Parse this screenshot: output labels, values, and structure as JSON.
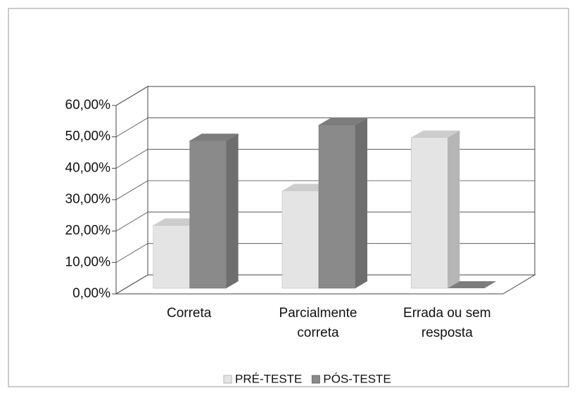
{
  "chart_data": {
    "type": "bar3d",
    "categories": [
      [
        "Correta"
      ],
      [
        "Parcialmente",
        "correta"
      ],
      [
        "Errada ou sem",
        "resposta"
      ]
    ],
    "series": [
      {
        "name": "PRÉ-TESTE",
        "color": "#e4e4e4",
        "values": [
          20,
          31,
          48
        ]
      },
      {
        "name": "PÓS-TESTE",
        "color": "#8a8a8a",
        "values": [
          47,
          52,
          0
        ]
      }
    ],
    "ylim": [
      0,
      60
    ],
    "yticks": [
      {
        "value": 0,
        "label": "0,00%"
      },
      {
        "value": 10,
        "label": "10,00%"
      },
      {
        "value": 20,
        "label": "20,00%"
      },
      {
        "value": 30,
        "label": "30,00%"
      },
      {
        "value": 40,
        "label": "40,00%"
      },
      {
        "value": 50,
        "label": "50,00%"
      },
      {
        "value": 60,
        "label": "60,00%"
      }
    ],
    "grid": true
  }
}
